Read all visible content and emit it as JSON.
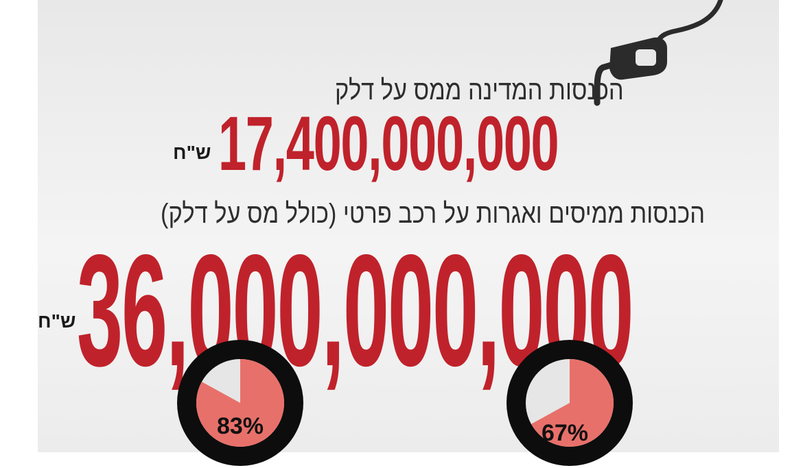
{
  "colors": {
    "accent_red": "#c0222b",
    "wheel_fill": "#e8706a",
    "tire": "#0d0d0d",
    "text_dark": "#2e2e2e"
  },
  "icons": {
    "pump": "fuel-nozzle-icon"
  },
  "fuel": {
    "headline": "הכנסות המדינה ממס על דלק",
    "amount": "17,400,000,000",
    "currency": "ש\"ח"
  },
  "vehicle": {
    "headline": "הכנסות ממיסים ואגרות על רכב פרטי (כולל מס על דלק)",
    "amount": "36,000,000,000",
    "currency": "ש\"ח"
  },
  "wheels": [
    {
      "label": "83%",
      "value": 0.83
    },
    {
      "label": "67%",
      "value": 0.67
    }
  ]
}
